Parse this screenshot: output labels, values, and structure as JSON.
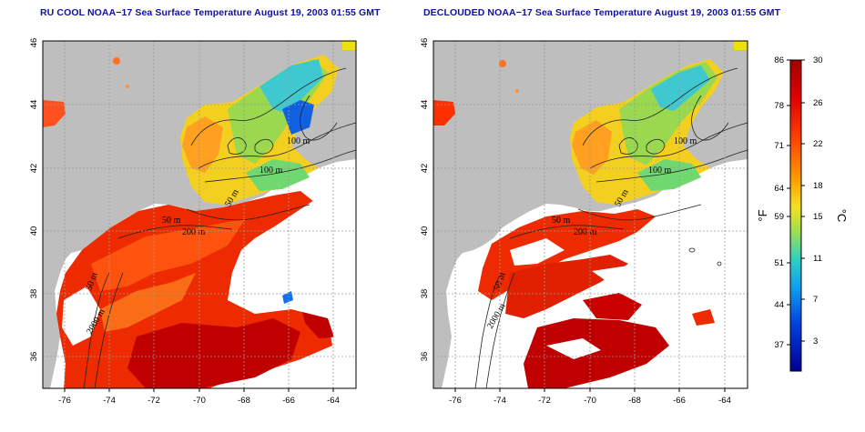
{
  "titles": {
    "left": "RU COOL NOAA−17 Sea Surface Temperature August 19, 2003 01:55 GMT",
    "right": "DECLOUDED NOAA−17 Sea Surface Temperature August 19, 2003 01:55 GMT"
  },
  "axes": {
    "x_ticks": [
      "-76",
      "-74",
      "-72",
      "-70",
      "-68",
      "-66",
      "-64"
    ],
    "y_ticks": [
      "36",
      "38",
      "40",
      "42",
      "44",
      "46"
    ],
    "lon_range": [
      -77,
      -63
    ],
    "lat_range": [
      35,
      46
    ]
  },
  "contour_labels_left": [
    "100 m",
    "100 m",
    "50 m",
    "50 m",
    "200 m",
    "50 m",
    "2000 m"
  ],
  "contour_labels_right": [
    "100 m",
    "100 m",
    "50 m",
    "50 m",
    "200 m",
    "50 m",
    "2000 m"
  ],
  "colorbar": {
    "fahrenheit_ticks": [
      "86",
      "78",
      "71",
      "64",
      "59",
      "51",
      "44",
      "37"
    ],
    "celsius_ticks": [
      "30",
      "26",
      "22",
      "18",
      "15",
      "11",
      "7",
      "3"
    ],
    "fahrenheit_unit": "°F",
    "celsius_unit": "°C",
    "colors": [
      "#d00000",
      "#ff3000",
      "#ff9000",
      "#f0e020",
      "#80e060",
      "#20d0d0",
      "#1070f0",
      "#0000b0"
    ]
  },
  "colors": {
    "land": "#bebebe",
    "title": "#1010a0",
    "grid": "#9a9a9a"
  }
}
